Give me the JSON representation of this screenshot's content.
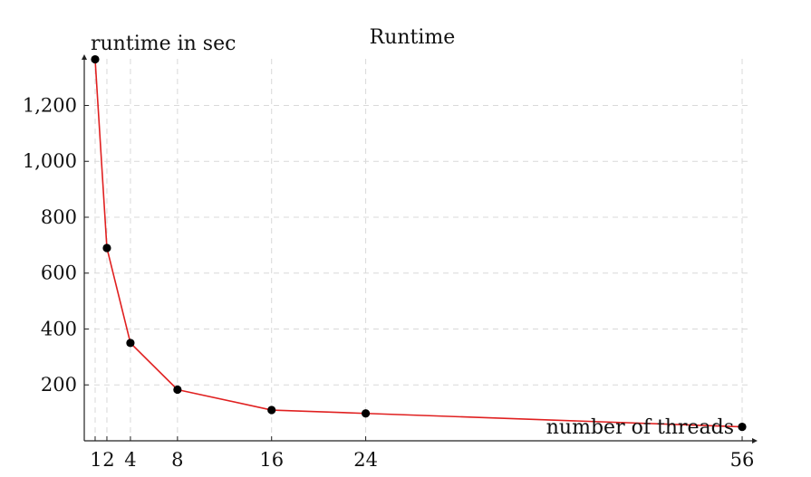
{
  "chart_data": {
    "type": "line",
    "title": "Runtime",
    "xlabel": "number of threads",
    "ylabel": "runtime in sec",
    "x": [
      1,
      2,
      4,
      8,
      16,
      24,
      56
    ],
    "series": [
      {
        "values": [
          1365,
          690,
          350,
          183,
          110,
          98,
          50
        ]
      }
    ],
    "xticks": [
      1,
      2,
      4,
      8,
      16,
      24,
      56
    ],
    "xtick_labels": [
      "1",
      "2",
      "4",
      "8",
      "16",
      "24",
      "56"
    ],
    "yticks": [
      200,
      400,
      600,
      800,
      1000,
      1200
    ],
    "ytick_labels": [
      "200",
      "400",
      "600",
      "800",
      "1,000",
      "1,200"
    ],
    "xlim": [
      0,
      57
    ],
    "ylim": [
      0,
      1370
    ],
    "grid": true,
    "line_color": "#e02020",
    "marker_color": "#000000",
    "grid_color": "#d9d9d9"
  }
}
